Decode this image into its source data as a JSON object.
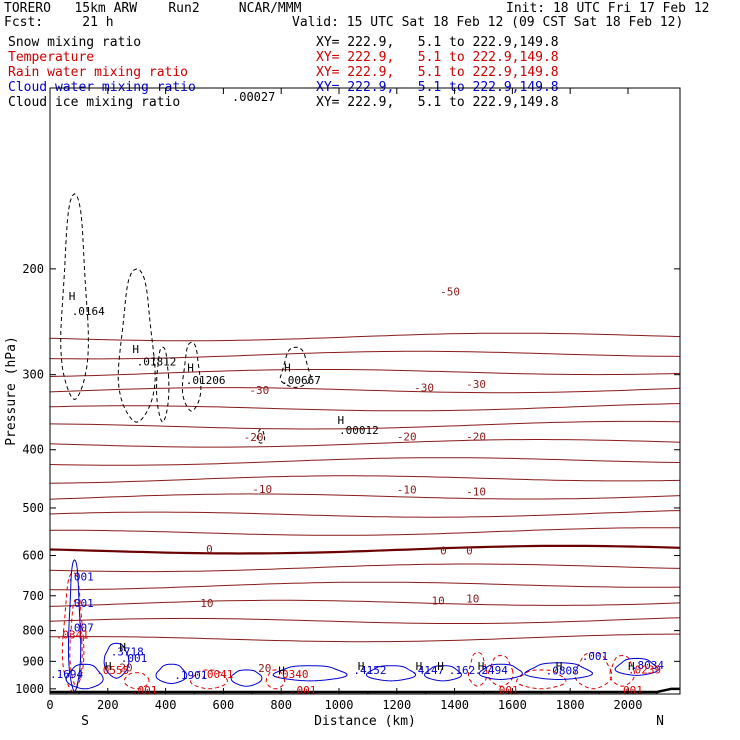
{
  "header": {
    "model": "TORERO   15km ARW    Run2     NCAR/MMM",
    "init": "Init: 18 UTC Fri 17 Feb 12",
    "fcst": "Fcst:     21 h",
    "valid": "Valid: 15 UTC Sat 18 Feb 12 (09 CST Sat 18 Feb 12)"
  },
  "legend": [
    {
      "label": "Snow mixing ratio",
      "xy": "XY= 222.9,   5.1 to 222.9,149.8",
      "color": "#000000"
    },
    {
      "label": "Temperature",
      "xy": "XY= 222.9,   5.1 to 222.9,149.8",
      "color": "#cc0000"
    },
    {
      "label": "Rain water mixing ratio",
      "xy": "XY= 222.9,   5.1 to 222.9,149.8",
      "color": "#cc0000"
    },
    {
      "label": "Cloud water mixing ratio",
      "xy": "XY= 222.9,   5.1 to 222.9,149.8",
      "color": "#0000cc"
    },
    {
      "label": "Cloud ice mixing ratio",
      "xy": "XY= 222.9,   5.1 to 222.9,149.8",
      "color": "#000000"
    }
  ],
  "chart_data": {
    "type": "line",
    "xlabel": "Distance (km)",
    "ylabel": "Pressure (hPa)",
    "xlim": [
      0,
      2180
    ],
    "ylim": [
      1020,
      100
    ],
    "xticks": [
      "0",
      "200",
      "400",
      "600",
      "800",
      "1000",
      "1200",
      "1400",
      "1600",
      "1800",
      "2000"
    ],
    "xtick_values": [
      0,
      200,
      400,
      600,
      800,
      1000,
      1200,
      1400,
      1600,
      1800,
      2000
    ],
    "yticks": [
      "200",
      "300",
      "400",
      "500",
      "600",
      "700",
      "800",
      "900",
      "1000"
    ],
    "ytick_values": [
      200,
      300,
      400,
      500,
      600,
      700,
      800,
      900,
      1000
    ],
    "x_end_labels": {
      "left": "S",
      "right": "N"
    },
    "top_label": ".00027",
    "temperature_isotherms_c": [
      -60,
      -55,
      -50,
      -45,
      -40,
      -35,
      -30,
      -25,
      -20,
      -15,
      -10,
      -5,
      0,
      5,
      10,
      15,
      20,
      25
    ],
    "temperature_labels": [
      {
        "text": "-50",
        "x": 1350,
        "p": 218
      },
      {
        "text": "-30",
        "x": 690,
        "p": 318
      },
      {
        "text": "-30",
        "x": 1260,
        "p": 315
      },
      {
        "text": "-30",
        "x": 1440,
        "p": 311
      },
      {
        "text": "-20",
        "x": 670,
        "p": 381
      },
      {
        "text": "-20",
        "x": 1200,
        "p": 380
      },
      {
        "text": "-20",
        "x": 1440,
        "p": 380
      },
      {
        "text": "-10",
        "x": 700,
        "p": 465
      },
      {
        "text": "-10",
        "x": 1200,
        "p": 466
      },
      {
        "text": "-10",
        "x": 1440,
        "p": 469
      },
      {
        "text": "0",
        "x": 540,
        "p": 585
      },
      {
        "text": "0",
        "x": 1350,
        "p": 588
      },
      {
        "text": "0",
        "x": 1440,
        "p": 588
      },
      {
        "text": "10",
        "x": 520,
        "p": 719
      },
      {
        "text": "10",
        "x": 1320,
        "p": 713
      },
      {
        "text": "10",
        "x": 1440,
        "p": 707
      },
      {
        "text": "20",
        "x": 240,
        "p": 922
      },
      {
        "text": "20",
        "x": 720,
        "p": 923
      }
    ],
    "cloud_ice_maxima": [
      {
        "text": ".0164",
        "x": 75,
        "p": 235
      },
      {
        "text": ".01812",
        "x": 300,
        "p": 285
      },
      {
        "text": ".01206",
        "x": 470,
        "p": 306
      },
      {
        "text": ".00667",
        "x": 800,
        "p": 306
      },
      {
        "text": ".00012",
        "x": 1000,
        "p": 371
      }
    ],
    "cloud_water_labels": [
      {
        "text": ".001",
        "x": 60,
        "p": 650
      },
      {
        "text": ".001",
        "x": 60,
        "p": 720
      },
      {
        "text": ".007",
        "x": 60,
        "p": 790
      },
      {
        "text": ".3718",
        "x": 210,
        "p": 866
      },
      {
        "text": ".001",
        "x": 245,
        "p": 888
      },
      {
        "text": ".1901",
        "x": 430,
        "p": 948
      },
      {
        "text": ".4152",
        "x": 1050,
        "p": 930
      },
      {
        "text": ".4147",
        "x": 1250,
        "p": 930
      },
      {
        "text": ".162",
        "x": 1380,
        "p": 930
      },
      {
        "text": ".2494",
        "x": 1470,
        "p": 930
      },
      {
        "text": ".0808",
        "x": 1715,
        "p": 932
      },
      {
        "text": ".8034",
        "x": 2010,
        "p": 912
      },
      {
        "text": ".001",
        "x": 1840,
        "p": 882
      },
      {
        "text": ".1694",
        "x": 0,
        "p": 945
      }
    ],
    "rain_water_labels": [
      {
        "text": ".0341",
        "x": 20,
        "p": 812
      },
      {
        "text": ".0555",
        "x": 160,
        "p": 931
      },
      {
        "text": ".0041",
        "x": 520,
        "p": 944
      },
      {
        "text": ".0340",
        "x": 780,
        "p": 944
      },
      {
        "text": ".001",
        "x": 280,
        "p": 1004
      },
      {
        "text": ".001",
        "x": 830,
        "p": 1004
      },
      {
        "text": ".001",
        "x": 1530,
        "p": 1004
      },
      {
        "text": ".0239",
        "x": 2000,
        "p": 928
      },
      {
        "text": ".001",
        "x": 1960,
        "p": 1004
      }
    ],
    "max_markers": [
      {
        "text": "H",
        "x": 65,
        "p": 222
      },
      {
        "text": "H",
        "x": 285,
        "p": 272
      },
      {
        "text": "H",
        "x": 475,
        "p": 292
      },
      {
        "text": "H",
        "x": 810,
        "p": 292
      },
      {
        "text": "H",
        "x": 995,
        "p": 357
      },
      {
        "text": "H",
        "x": 240,
        "p": 852
      },
      {
        "text": "H",
        "x": 1065,
        "p": 916
      },
      {
        "text": "H",
        "x": 1265,
        "p": 916
      },
      {
        "text": "H",
        "x": 1340,
        "p": 916
      },
      {
        "text": "H",
        "x": 1480,
        "p": 916
      },
      {
        "text": "H",
        "x": 1750,
        "p": 916
      },
      {
        "text": "H",
        "x": 2000,
        "p": 916
      },
      {
        "text": "H",
        "x": 790,
        "p": 932
      },
      {
        "text": "H",
        "x": 190,
        "p": 916
      }
    ]
  }
}
